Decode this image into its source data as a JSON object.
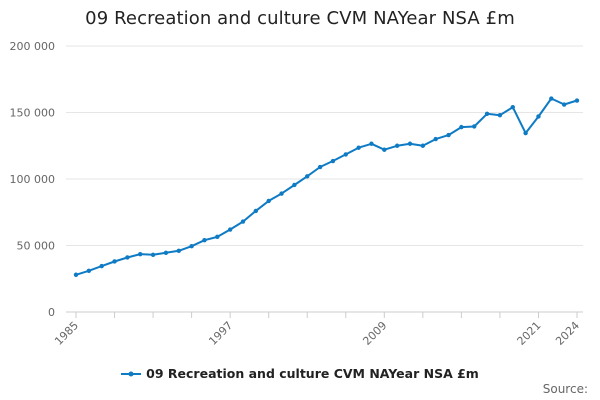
{
  "chart_data": {
    "type": "line",
    "title": "09 Recreation and culture CVM NAYear NSA £m",
    "xlabel": "",
    "ylabel": "",
    "x": [
      1985,
      1986,
      1987,
      1988,
      1989,
      1990,
      1991,
      1992,
      1993,
      1994,
      1995,
      1996,
      1997,
      1998,
      1999,
      2000,
      2001,
      2002,
      2003,
      2004,
      2005,
      2006,
      2007,
      2008,
      2009,
      2010,
      2011,
      2012,
      2013,
      2014,
      2015,
      2016,
      2017,
      2018,
      2019,
      2020,
      2021,
      2022,
      2023,
      2024
    ],
    "series": [
      {
        "name": "09 Recreation and culture CVM NAYear NSA £m",
        "color": "#0e7bc4",
        "values": [
          28000,
          31000,
          34500,
          38000,
          41000,
          43500,
          43000,
          44500,
          46000,
          49500,
          54000,
          56500,
          62000,
          68000,
          76000,
          83500,
          89000,
          95500,
          102000,
          109000,
          113500,
          118500,
          123500,
          126500,
          122000,
          125000,
          126500,
          125000,
          130000,
          133000,
          139000,
          139500,
          149000,
          148000,
          154000,
          134500,
          147000,
          160500,
          156000,
          159000
        ]
      }
    ],
    "xlim": [
      1985,
      2024
    ],
    "ylim": [
      0,
      200000
    ],
    "x_ticks": [
      1985,
      1997,
      2009,
      2021,
      2024
    ],
    "x_tick_labels": [
      "1985",
      "1997",
      "2009",
      "2021",
      "2024"
    ],
    "y_ticks": [
      0,
      50000,
      100000,
      150000,
      200000
    ],
    "y_tick_labels": [
      "0",
      "50 000",
      "100 000",
      "150 000",
      "200 000"
    ],
    "grid": true,
    "legend_position": "bottom-center",
    "source_label": "Source:"
  }
}
